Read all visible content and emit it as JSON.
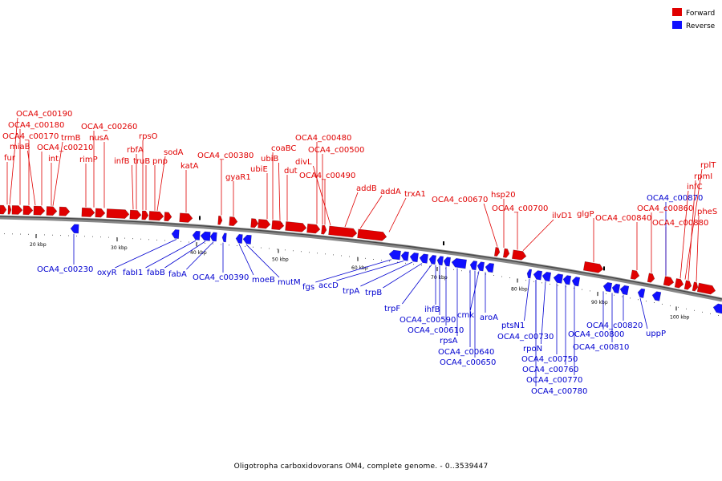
{
  "caption": "Oligotropha carboxidovorans OM4, complete genome. - 0..3539447",
  "legend": [
    {
      "label": "Forward",
      "color": "#e00000"
    },
    {
      "label": "Reverse",
      "color": "#1010ff"
    }
  ],
  "ticks": [
    "20 kbp",
    "30 kbp",
    "40 kbp",
    "50 kbp",
    "60 kbp",
    "70 kbp",
    "80 kbp",
    "90 kbp",
    "100 kbp"
  ],
  "forward_labels": [
    "OCA4_c00190",
    "OCA4_c00180",
    "OCA4_c00170",
    "miaB",
    "fur",
    "OCA4_c00210",
    "trmB",
    "int",
    "rimP",
    "OCA4_c00260",
    "nusA",
    "rpsO",
    "rbfA",
    "infB",
    "truB",
    "pnp",
    "sodA",
    "katA",
    "OCA4_c00380",
    "gyaR1",
    "coaBC",
    "ubiB",
    "ubiE",
    "dut",
    "OCA4_c00480",
    "OCA4_c00500",
    "divL",
    "OCA4_c00490",
    "addB",
    "addA",
    "trxA1",
    "OCA4_c00670",
    "hsp20",
    "OCA4_c00700",
    "ilvD1",
    "glgP",
    "OCA4_c00840",
    "OCA4_c00860",
    "OCA4_c00880",
    "rplT",
    "rpmI",
    "infC",
    "pheS"
  ],
  "reverse_labels": [
    "OCA4_c00230",
    "oxyR",
    "fabI1",
    "fabB",
    "fabA",
    "OCA4_c00390",
    "moeB",
    "mutM",
    "fgs",
    "accD",
    "trpA",
    "trpB",
    "trpF",
    "ihfB",
    "OCA4_c00590",
    "OCA4_c00610",
    "rpsA",
    "OCA4_c00640",
    "OCA4_c00650",
    "cmk",
    "aroA",
    "ptsN1",
    "OCA4_c00730",
    "rpoN",
    "OCA4_c00750",
    "OCA4_c00760",
    "OCA4_c00770",
    "OCA4_c00780",
    "OCA4_c00800",
    "OCA4_c00810",
    "OCA4_c00820",
    "uppP",
    "OCA4_c00870"
  ]
}
